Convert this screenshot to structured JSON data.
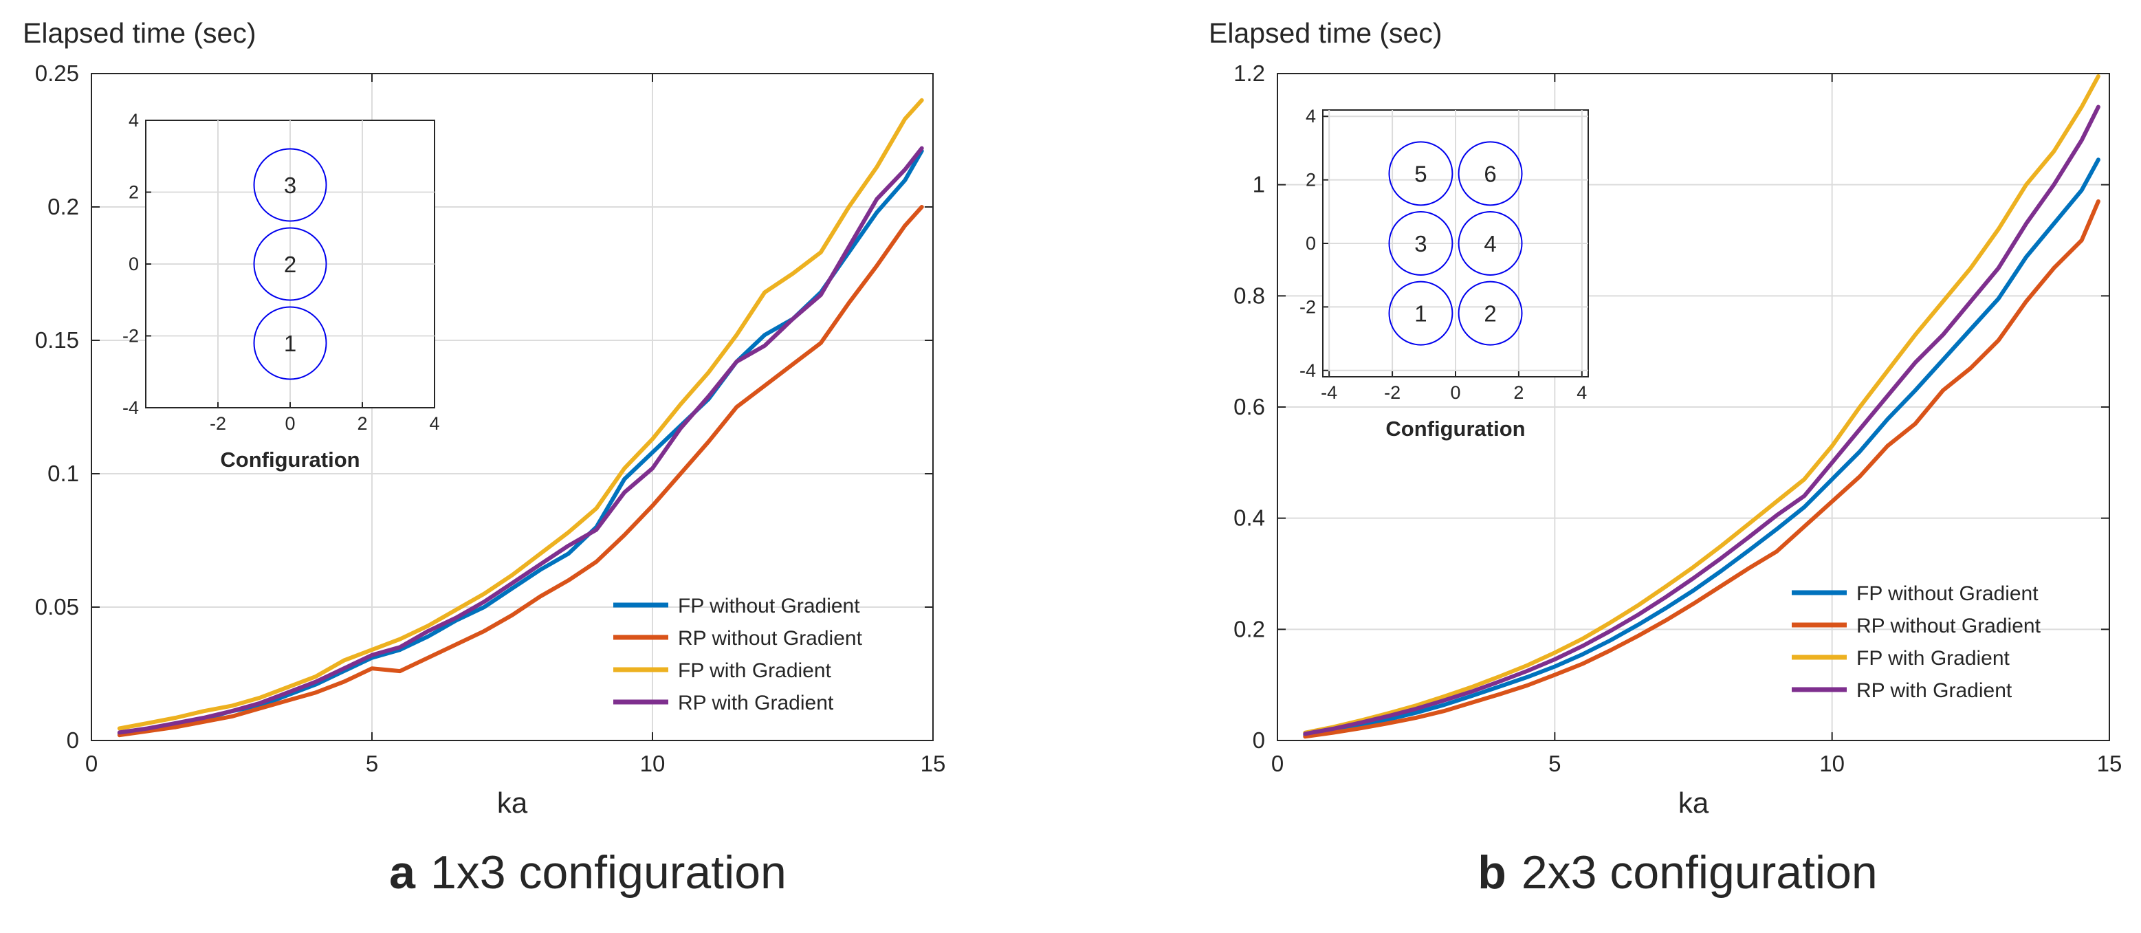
{
  "colors": {
    "fp_no_grad": "#0072BD",
    "rp_no_grad": "#D95319",
    "fp_grad": "#EDB120",
    "rp_grad": "#7E2F8E",
    "circle": "#0000EE",
    "grid": "#dcdcdc",
    "axis": "#262626"
  },
  "chart_data": [
    {
      "type": "line",
      "panel": "a",
      "caption_letter": "a",
      "caption_text": "1x3 configuration",
      "ylabel": "Elapsed time (sec)",
      "xlabel": "ka",
      "xlim": [
        0,
        15
      ],
      "ylim": [
        0,
        0.25
      ],
      "xticks": [
        0,
        5,
        10,
        15
      ],
      "xtick_labels": [
        "0",
        "5",
        "10",
        "15"
      ],
      "yticks": [
        0,
        0.05,
        0.1,
        0.15,
        0.2,
        0.25
      ],
      "ytick_labels": [
        "0",
        "0.05",
        "0.1",
        "0.15",
        "0.2",
        "0.25"
      ],
      "grid": true,
      "legend_position": "bottom-right",
      "x": [
        0.5,
        1.0,
        1.5,
        2.0,
        2.5,
        3.0,
        3.5,
        4.0,
        4.5,
        5.0,
        5.5,
        6.0,
        6.5,
        7.0,
        7.5,
        8.0,
        8.5,
        9.0,
        9.5,
        10.0,
        10.5,
        11.0,
        11.5,
        12.0,
        12.5,
        13.0,
        13.5,
        14.0,
        14.5,
        14.8
      ],
      "series": [
        {
          "name": "FP without Gradient",
          "color_key": "fp_no_grad",
          "values": [
            0.0025,
            0.004,
            0.006,
            0.008,
            0.011,
            0.013,
            0.017,
            0.021,
            0.026,
            0.031,
            0.034,
            0.039,
            0.045,
            0.05,
            0.057,
            0.064,
            0.07,
            0.08,
            0.098,
            0.108,
            0.118,
            0.128,
            0.142,
            0.152,
            0.158,
            0.168,
            0.183,
            0.198,
            0.21,
            0.221
          ]
        },
        {
          "name": "RP without Gradient",
          "color_key": "rp_no_grad",
          "values": [
            0.002,
            0.0035,
            0.005,
            0.007,
            0.009,
            0.012,
            0.015,
            0.018,
            0.022,
            0.027,
            0.026,
            0.031,
            0.036,
            0.041,
            0.047,
            0.054,
            0.06,
            0.067,
            0.077,
            0.088,
            0.1,
            0.112,
            0.125,
            0.133,
            0.141,
            0.149,
            0.164,
            0.178,
            0.193,
            0.2
          ]
        },
        {
          "name": "FP with Gradient",
          "color_key": "fp_grad",
          "values": [
            0.0045,
            0.0065,
            0.0085,
            0.011,
            0.013,
            0.016,
            0.02,
            0.024,
            0.03,
            0.034,
            0.038,
            0.043,
            0.049,
            0.055,
            0.062,
            0.07,
            0.078,
            0.087,
            0.102,
            0.113,
            0.126,
            0.138,
            0.152,
            0.168,
            0.175,
            0.183,
            0.2,
            0.215,
            0.233,
            0.24
          ]
        },
        {
          "name": "RP with Gradient",
          "color_key": "rp_grad",
          "values": [
            0.003,
            0.0045,
            0.0065,
            0.0085,
            0.011,
            0.014,
            0.018,
            0.022,
            0.027,
            0.032,
            0.035,
            0.041,
            0.046,
            0.052,
            0.059,
            0.066,
            0.073,
            0.079,
            0.093,
            0.102,
            0.117,
            0.129,
            0.142,
            0.148,
            0.158,
            0.167,
            0.185,
            0.203,
            0.214,
            0.222
          ]
        }
      ],
      "inset": {
        "xlabel": "Configuration",
        "xlim": [
          -4,
          4
        ],
        "ylim": [
          -4,
          4
        ],
        "xticks": [
          -2,
          0,
          2,
          4
        ],
        "xtick_labels": [
          "-2",
          "0",
          "2",
          "4"
        ],
        "yticks": [
          4,
          2,
          0,
          -2,
          -4
        ],
        "ytick_labels": [
          "4",
          "2",
          "0",
          "-2",
          "-4"
        ],
        "radius": 1,
        "circles": [
          {
            "label": "3",
            "x": 0,
            "y": 2.2
          },
          {
            "label": "2",
            "x": 0,
            "y": 0
          },
          {
            "label": "1",
            "x": 0,
            "y": -2.2
          }
        ]
      }
    },
    {
      "type": "line",
      "panel": "b",
      "caption_letter": "b",
      "caption_text": "2x3 configuration",
      "ylabel": "Elapsed time (sec)",
      "xlabel": "ka",
      "xlim": [
        0,
        15
      ],
      "ylim": [
        0,
        1.2
      ],
      "xticks": [
        0,
        5,
        10,
        15
      ],
      "xtick_labels": [
        "0",
        "5",
        "10",
        "15"
      ],
      "yticks": [
        0,
        0.2,
        0.4,
        0.6,
        0.8,
        1.0,
        1.2
      ],
      "ytick_labels": [
        "0",
        "0.2",
        "0.4",
        "0.6",
        "0.8",
        "1",
        "1.2"
      ],
      "grid": true,
      "legend_position": "bottom-right",
      "x": [
        0.5,
        1.0,
        1.5,
        2.0,
        2.5,
        3.0,
        3.5,
        4.0,
        4.5,
        5.0,
        5.5,
        6.0,
        6.5,
        7.0,
        7.5,
        8.0,
        8.5,
        9.0,
        9.5,
        10.0,
        10.5,
        11.0,
        11.5,
        12.0,
        12.5,
        13.0,
        13.5,
        14.0,
        14.5,
        14.8
      ],
      "series": [
        {
          "name": "FP without Gradient",
          "color_key": "fp_no_grad",
          "values": [
            0.01,
            0.018,
            0.028,
            0.038,
            0.05,
            0.064,
            0.08,
            0.097,
            0.114,
            0.133,
            0.155,
            0.18,
            0.208,
            0.238,
            0.27,
            0.305,
            0.342,
            0.38,
            0.42,
            0.47,
            0.52,
            0.578,
            0.63,
            0.685,
            0.74,
            0.795,
            0.87,
            0.93,
            0.99,
            1.045
          ]
        },
        {
          "name": "RP without Gradient",
          "color_key": "rp_no_grad",
          "values": [
            0.007,
            0.014,
            0.022,
            0.031,
            0.041,
            0.053,
            0.068,
            0.083,
            0.099,
            0.118,
            0.138,
            0.162,
            0.188,
            0.216,
            0.246,
            0.278,
            0.31,
            0.34,
            0.385,
            0.43,
            0.475,
            0.53,
            0.57,
            0.63,
            0.67,
            0.72,
            0.79,
            0.85,
            0.9,
            0.97
          ]
        },
        {
          "name": "FP with Gradient",
          "color_key": "fp_grad",
          "values": [
            0.014,
            0.024,
            0.036,
            0.049,
            0.063,
            0.079,
            0.096,
            0.115,
            0.135,
            0.158,
            0.183,
            0.212,
            0.243,
            0.277,
            0.312,
            0.35,
            0.39,
            0.43,
            0.47,
            0.53,
            0.6,
            0.665,
            0.73,
            0.79,
            0.85,
            0.92,
            1.0,
            1.06,
            1.14,
            1.195
          ]
        },
        {
          "name": "RP with Gradient",
          "color_key": "rp_grad",
          "values": [
            0.012,
            0.021,
            0.032,
            0.044,
            0.057,
            0.072,
            0.088,
            0.106,
            0.125,
            0.146,
            0.17,
            0.197,
            0.226,
            0.258,
            0.292,
            0.328,
            0.366,
            0.405,
            0.44,
            0.5,
            0.56,
            0.62,
            0.68,
            0.73,
            0.79,
            0.85,
            0.93,
            1.0,
            1.08,
            1.14
          ]
        }
      ],
      "inset": {
        "xlabel": "Configuration",
        "xlim": [
          -4.2,
          4.2
        ],
        "ylim": [
          -4.2,
          4.2
        ],
        "xticks": [
          -4,
          -2,
          0,
          2,
          4
        ],
        "xtick_labels": [
          "-4",
          "-2",
          "0",
          "2",
          "4"
        ],
        "yticks": [
          4,
          2,
          0,
          -2,
          -4
        ],
        "ytick_labels": [
          "4",
          "2",
          "0",
          "-2",
          "-4"
        ],
        "radius": 1,
        "circles": [
          {
            "label": "5",
            "x": -1.1,
            "y": 2.2
          },
          {
            "label": "6",
            "x": 1.1,
            "y": 2.2
          },
          {
            "label": "3",
            "x": -1.1,
            "y": 0
          },
          {
            "label": "4",
            "x": 1.1,
            "y": 0
          },
          {
            "label": "1",
            "x": -1.1,
            "y": -2.2
          },
          {
            "label": "2",
            "x": 1.1,
            "y": -2.2
          }
        ]
      }
    }
  ]
}
